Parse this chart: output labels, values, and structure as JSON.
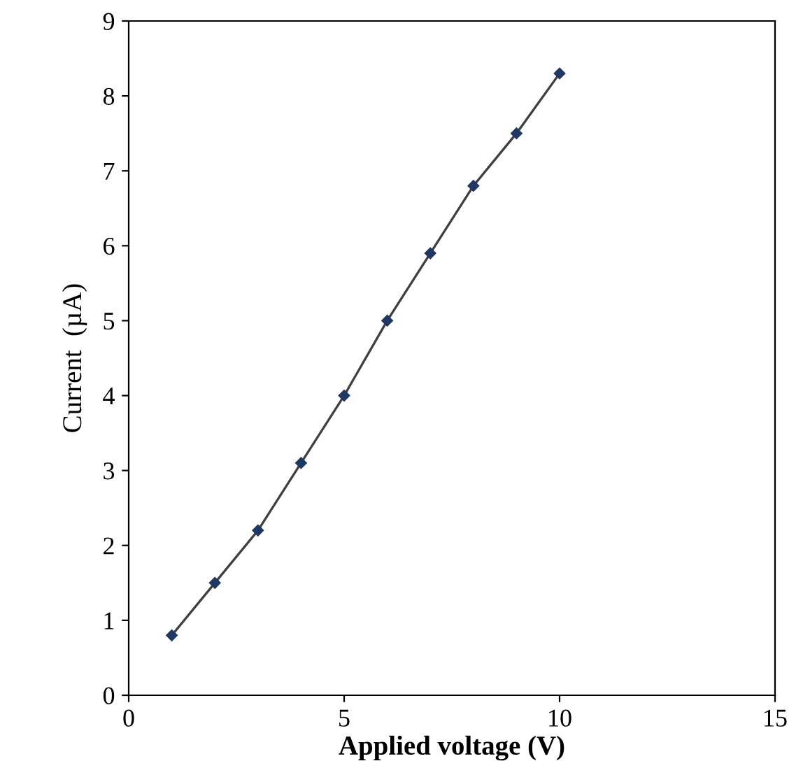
{
  "chart_data": {
    "type": "line",
    "xlabel": "Applied voltage (V)",
    "ylabel": "Current  (µA)",
    "x": [
      1,
      2,
      3,
      4,
      5,
      6,
      7,
      8,
      9,
      10
    ],
    "series": [
      {
        "color": "#1f3864",
        "values": [
          0.8,
          1.5,
          2.2,
          3.1,
          4.0,
          5.0,
          5.9,
          6.8,
          7.5,
          8.3
        ]
      }
    ],
    "xlim": [
      0,
      15
    ],
    "xticks": [
      0,
      5,
      10,
      15
    ],
    "ylim": [
      0,
      9
    ],
    "yticks": [
      0,
      1,
      2,
      3,
      4,
      5,
      6,
      7,
      8,
      9
    ],
    "grid": false,
    "legend": false,
    "marker": "diamond",
    "line_style": "solid"
  }
}
